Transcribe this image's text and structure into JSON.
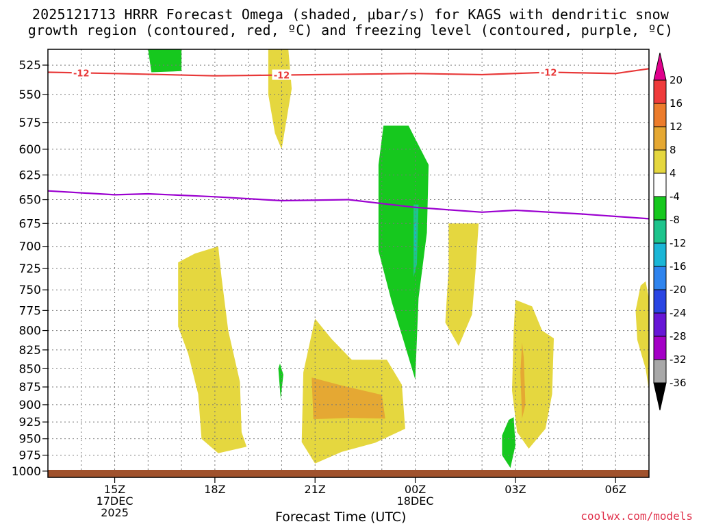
{
  "header": {
    "title_line1": "2025121713 HRRR Forecast Omega (shaded, μbar/s) for KAGS with dendritic snow",
    "title_line2": "growth region (contoured, red, ºC) and freezing level (contoured, purple, ºC)"
  },
  "footer": {
    "credit": "coolwx.com/models"
  },
  "chart_data": {
    "type": "time-height cross section",
    "title": "2025121713 HRRR Forecast Omega (shaded, μbar/s) for KAGS with dendritic snow growth region (contoured, red, ºC) and freezing level (contoured, purple, ºC)",
    "xlabel": "Forecast Time (UTC)",
    "ylabel": "",
    "y_unit": "hPa",
    "y_scale": "log",
    "y_range": [
      1010,
      512
    ],
    "x_range_hours": [
      13,
      31
    ],
    "x_ticks": [
      {
        "hour": 15,
        "label": "15Z",
        "date": "17DEC",
        "year": "2025"
      },
      {
        "hour": 18,
        "label": "18Z",
        "date": "",
        "year": ""
      },
      {
        "hour": 21,
        "label": "21Z",
        "date": "",
        "year": ""
      },
      {
        "hour": 24,
        "label": "00Z",
        "date": "18DEC",
        "year": ""
      },
      {
        "hour": 27,
        "label": "03Z",
        "date": "",
        "year": ""
      },
      {
        "hour": 30,
        "label": "06Z",
        "date": "",
        "year": ""
      }
    ],
    "y_ticks": [
      "525",
      "550",
      "575",
      "600",
      "625",
      "650",
      "675",
      "700",
      "725",
      "750",
      "775",
      "800",
      "825",
      "850",
      "875",
      "900",
      "925",
      "950",
      "975",
      "1000"
    ],
    "grid": true,
    "colorbar": {
      "unit": "μbar/s",
      "labels": [
        "20",
        "16",
        "12",
        "8",
        "4",
        "-4",
        "-8",
        "-12",
        "-16",
        "-20",
        "-24",
        "-28",
        "-32",
        "-36"
      ],
      "bins": [
        {
          "range": ">20",
          "color": "#e0008c"
        },
        {
          "range": "16 to 20",
          "color": "#ef3b3b"
        },
        {
          "range": "12 to 16",
          "color": "#ec7c2c"
        },
        {
          "range": "8 to 12",
          "color": "#e5a833"
        },
        {
          "range": "4 to 8",
          "color": "#e5d73f"
        },
        {
          "range": "-4 to 4",
          "color": "#ffffff"
        },
        {
          "range": "-8 to -4",
          "color": "#16c81e"
        },
        {
          "range": "-12 to -8",
          "color": "#1ec48c"
        },
        {
          "range": "-16 to -12",
          "color": "#1bb6d6"
        },
        {
          "range": "-20 to -16",
          "color": "#2f84ee"
        },
        {
          "range": "-24 to -20",
          "color": "#2a45e3"
        },
        {
          "range": "-28 to -24",
          "color": "#6716d6"
        },
        {
          "range": "-32 to -28",
          "color": "#a400c6"
        },
        {
          "range": "-36 to -32",
          "color": "#a8a8a8"
        },
        {
          "range": "<-36",
          "color": "#000000"
        }
      ]
    },
    "contours": [
      {
        "kind": "dendritic growth",
        "color": "#e83838",
        "level": "-12",
        "label": "-12",
        "points": [
          [
            13,
            531
          ],
          [
            15,
            532
          ],
          [
            18,
            534
          ],
          [
            21,
            533
          ],
          [
            24,
            532
          ],
          [
            26,
            533
          ],
          [
            28,
            531
          ],
          [
            30,
            532
          ],
          [
            31,
            528
          ]
        ]
      },
      {
        "kind": "freezing level",
        "color": "#9b00d0",
        "level": "0",
        "label": "",
        "points": [
          [
            13,
            641
          ],
          [
            15,
            645
          ],
          [
            16,
            644
          ],
          [
            18,
            647
          ],
          [
            20,
            651
          ],
          [
            22,
            650
          ],
          [
            24,
            658
          ],
          [
            26,
            663
          ],
          [
            27,
            661
          ],
          [
            29,
            665
          ],
          [
            31,
            670
          ]
        ]
      }
    ],
    "shaded_regions": [
      {
        "bin": "-8 to -4",
        "points": [
          [
            16.0,
            512
          ],
          [
            17.0,
            512
          ],
          [
            17.0,
            530
          ],
          [
            16.1,
            531
          ]
        ]
      },
      {
        "bin": "4 to 8",
        "points": [
          [
            19.6,
            512
          ],
          [
            20.2,
            512
          ],
          [
            20.3,
            545
          ],
          [
            20.0,
            600
          ],
          [
            19.8,
            585
          ],
          [
            19.6,
            550
          ]
        ]
      },
      {
        "bin": "4 to 8",
        "points": [
          [
            16.9,
            718
          ],
          [
            17.4,
            708
          ],
          [
            18.1,
            700
          ],
          [
            18.2,
            735
          ],
          [
            18.4,
            800
          ],
          [
            18.75,
            868
          ],
          [
            18.8,
            940
          ],
          [
            18.95,
            962
          ],
          [
            18.1,
            972
          ],
          [
            17.6,
            950
          ],
          [
            17.5,
            885
          ],
          [
            17.2,
            830
          ],
          [
            16.9,
            795
          ]
        ]
      },
      {
        "bin": "-8 to -4",
        "points": [
          [
            19.9,
            850
          ],
          [
            19.95,
            843
          ],
          [
            20.05,
            858
          ],
          [
            19.97,
            892
          ]
        ]
      },
      {
        "bin": "4 to 8",
        "points": [
          [
            21.0,
            785
          ],
          [
            21.5,
            811
          ],
          [
            22.1,
            838
          ],
          [
            23.15,
            838
          ],
          [
            23.6,
            872
          ],
          [
            23.7,
            935
          ],
          [
            22.8,
            956
          ],
          [
            21.8,
            970
          ],
          [
            21.0,
            988
          ],
          [
            20.6,
            955
          ],
          [
            20.65,
            855
          ]
        ]
      },
      {
        "bin": "8 to 12",
        "points": [
          [
            20.9,
            862
          ],
          [
            21.8,
            873
          ],
          [
            23.0,
            886
          ],
          [
            23.1,
            920
          ],
          [
            22.0,
            919
          ],
          [
            20.95,
            921
          ]
        ]
      },
      {
        "bin": "-8 to -4",
        "points": [
          [
            23.05,
            578
          ],
          [
            23.8,
            578
          ],
          [
            24.4,
            615
          ],
          [
            24.35,
            685
          ],
          [
            24.1,
            760
          ],
          [
            24.05,
            810
          ],
          [
            24.0,
            865
          ],
          [
            23.7,
            820
          ],
          [
            23.3,
            765
          ],
          [
            22.9,
            705
          ],
          [
            22.9,
            615
          ]
        ]
      },
      {
        "bin": "-12 to -8",
        "points": [
          [
            23.95,
            655
          ],
          [
            24.1,
            655
          ],
          [
            24.05,
            720
          ],
          [
            23.95,
            735
          ]
        ]
      },
      {
        "bin": "-16 to -12",
        "points": [
          [
            23.98,
            675
          ],
          [
            24.02,
            675
          ],
          [
            24.01,
            705
          ],
          [
            23.98,
            705
          ]
        ]
      },
      {
        "bin": "4 to 8",
        "points": [
          [
            25.0,
            675
          ],
          [
            25.9,
            675
          ],
          [
            25.8,
            730
          ],
          [
            25.7,
            780
          ],
          [
            25.3,
            820
          ],
          [
            24.9,
            790
          ],
          [
            25.0,
            725
          ]
        ]
      },
      {
        "bin": "-8 to -4",
        "points": [
          [
            26.8,
            922
          ],
          [
            26.95,
            918
          ],
          [
            27.0,
            960
          ],
          [
            26.85,
            995
          ],
          [
            26.6,
            975
          ],
          [
            26.6,
            945
          ]
        ]
      },
      {
        "bin": "4 to 8",
        "points": [
          [
            27.0,
            762
          ],
          [
            27.5,
            770
          ],
          [
            27.8,
            800
          ],
          [
            28.15,
            810
          ],
          [
            28.1,
            885
          ],
          [
            27.9,
            935
          ],
          [
            27.4,
            965
          ],
          [
            27.05,
            940
          ],
          [
            26.9,
            880
          ],
          [
            26.95,
            800
          ]
        ]
      },
      {
        "bin": "8 to 12",
        "points": [
          [
            27.2,
            815
          ],
          [
            27.25,
            835
          ],
          [
            27.3,
            900
          ],
          [
            27.2,
            920
          ],
          [
            27.15,
            855
          ]
        ]
      },
      {
        "bin": "4 to 8",
        "points": [
          [
            30.75,
            745
          ],
          [
            30.9,
            740
          ],
          [
            31.0,
            760
          ],
          [
            31.0,
            880
          ],
          [
            30.9,
            850
          ],
          [
            30.65,
            812
          ],
          [
            30.6,
            775
          ]
        ]
      }
    ],
    "terrain_color": "#a0522d"
  }
}
